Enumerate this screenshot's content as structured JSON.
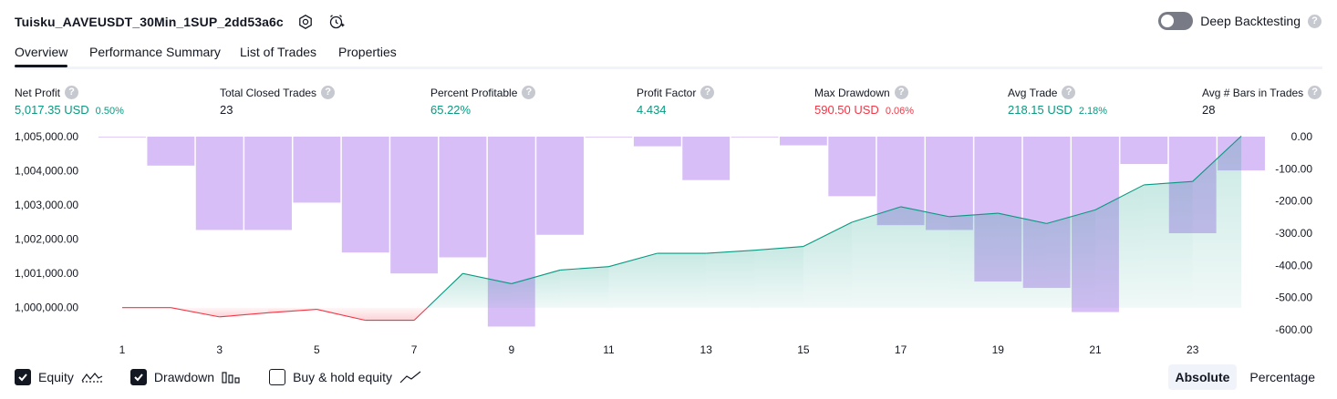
{
  "header": {
    "strategy_title": "Tuisku_AAVEUSDT_30Min_1SUP_2dd53a6c",
    "deep_backtesting_label": "Deep Backtesting",
    "help_glyph": "?"
  },
  "tabs": [
    {
      "label": "Overview",
      "active": true
    },
    {
      "label": "Performance Summary",
      "active": false
    },
    {
      "label": "List of Trades",
      "active": false
    },
    {
      "label": "Properties",
      "active": false
    }
  ],
  "metrics": [
    {
      "label": "Net Profit",
      "value": "5,017.35 USD",
      "pct": "0.50%",
      "color": "green"
    },
    {
      "label": "Total Closed Trades",
      "value": "23",
      "pct": "",
      "color": "dark"
    },
    {
      "label": "Percent Profitable",
      "value": "65.22%",
      "pct": "",
      "color": "green"
    },
    {
      "label": "Profit Factor",
      "value": "4.434",
      "pct": "",
      "color": "green"
    },
    {
      "label": "Max Drawdown",
      "value": "590.50 USD",
      "pct": "0.06%",
      "color": "red"
    },
    {
      "label": "Avg Trade",
      "value": "218.15 USD",
      "pct": "2.18%",
      "color": "green"
    },
    {
      "label": "Avg # Bars in Trades",
      "value": "28",
      "pct": "",
      "color": "dark"
    }
  ],
  "chart_data": {
    "type": "line",
    "x": [
      1,
      2,
      3,
      4,
      5,
      6,
      7,
      8,
      9,
      10,
      11,
      12,
      13,
      14,
      15,
      16,
      17,
      18,
      19,
      20,
      21,
      22,
      23,
      24
    ],
    "x_tick_labels": [
      "1",
      "3",
      "5",
      "7",
      "9",
      "11",
      "13",
      "15",
      "17",
      "19",
      "21",
      "23"
    ],
    "left_axis": {
      "ticks": [
        "1,005,000.00",
        "1,004,000.00",
        "1,003,000.00",
        "1,002,000.00",
        "1,001,000.00",
        "1,000,000.00"
      ],
      "ylim": [
        999300,
        1005000
      ]
    },
    "right_axis": {
      "ticks": [
        "0.00",
        "-100.00",
        "-200.00",
        "-300.00",
        "-400.00",
        "-500.00",
        "-600.00"
      ],
      "ylim": [
        -600,
        0
      ]
    },
    "series": [
      {
        "name": "Equity",
        "axis": "left",
        "values": [
          1000000,
          1000000,
          999730,
          999850,
          999950,
          999630,
          999630,
          1001000,
          1000700,
          1001100,
          1001200,
          1001590,
          1001590,
          1001680,
          1001790,
          1002500,
          1002950,
          1002660,
          1002760,
          1002460,
          1002860,
          1003590,
          1003690,
          1005017
        ],
        "color_positive": "#089981",
        "color_negative": "#f23645"
      },
      {
        "name": "Drawdown",
        "axis": "right",
        "values": [
          0,
          -90,
          -290,
          -290,
          -205,
          -360,
          -425,
          -375,
          -590,
          -305,
          0,
          -30,
          -135,
          0,
          -27,
          -185,
          -275,
          -290,
          -450,
          -470,
          -545,
          -85,
          -300,
          -105
        ],
        "color": "#d1b3f5"
      }
    ],
    "grid": false,
    "legend": "bottom-left"
  },
  "legend": [
    {
      "label": "Equity",
      "checked": true,
      "icon": "equity-line-icon"
    },
    {
      "label": "Drawdown",
      "checked": true,
      "icon": "drawdown-bars-icon"
    },
    {
      "label": "Buy & hold equity",
      "checked": false,
      "icon": "buy-hold-line-icon"
    }
  ],
  "modes": [
    {
      "label": "Absolute",
      "active": true
    },
    {
      "label": "Percentage",
      "active": false
    }
  ]
}
